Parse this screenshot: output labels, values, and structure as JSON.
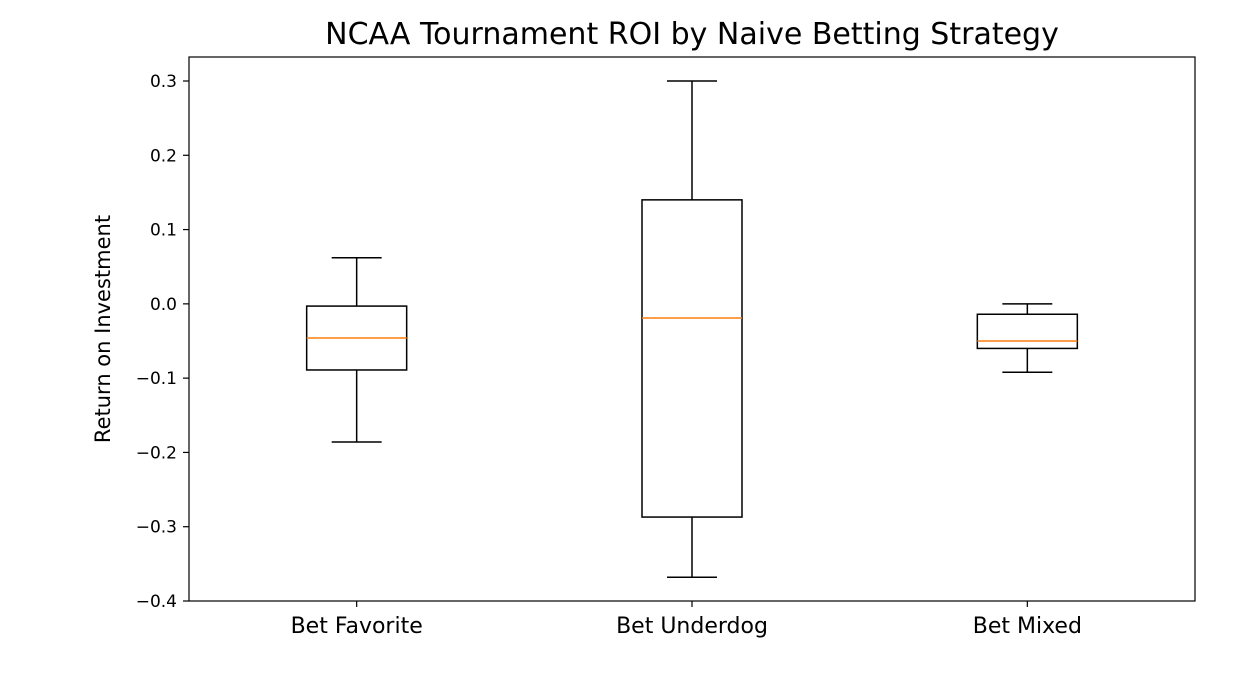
{
  "chart_data": {
    "type": "box",
    "title": "NCAA Tournament ROI by Naive Betting Strategy",
    "xlabel": "",
    "ylabel": "Return on Investment",
    "ylim": [
      -0.4,
      0.3
    ],
    "yticks": [
      "0.3",
      "0.2",
      "0.1",
      "0.0",
      "−0.1",
      "−0.2",
      "−0.3",
      "−0.4"
    ],
    "ytick_values": [
      0.3,
      0.2,
      0.1,
      0.0,
      -0.1,
      -0.2,
      -0.3,
      -0.4
    ],
    "grid": false,
    "categories": [
      "Bet Favorite",
      "Bet Underdog",
      "Bet Mixed"
    ],
    "boxes": [
      {
        "whisker_low": -0.186,
        "q1": -0.089,
        "median": -0.046,
        "q3": -0.003,
        "whisker_high": 0.062
      },
      {
        "whisker_low": -0.368,
        "q1": -0.287,
        "median": -0.019,
        "q3": 0.14,
        "whisker_high": 0.3
      },
      {
        "whisker_low": -0.092,
        "q1": -0.06,
        "median": -0.05,
        "q3": -0.014,
        "whisker_high": 0.0
      }
    ],
    "colors": {
      "box": "#000000",
      "median": "#ff7f0e",
      "axes": "#000000"
    }
  }
}
